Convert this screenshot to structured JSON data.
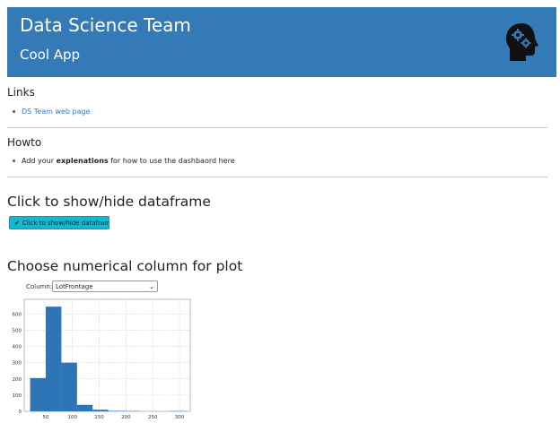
{
  "header": {
    "title": "Data Science Team",
    "subtitle": "Cool App",
    "logo_icon": "head-gears-icon"
  },
  "links_section": {
    "heading": "Links",
    "items": [
      {
        "text": "DS Team web page"
      }
    ]
  },
  "howto_section": {
    "heading": "Howto",
    "item_prefix": "Add your ",
    "item_bold": "explenations",
    "item_suffix": " for how to use the dashbaord here"
  },
  "toggle_section": {
    "heading": "Click to show/hide dataframe",
    "button_label": "Click to show/hide dataframe",
    "button_checked": true
  },
  "plot_section": {
    "heading": "Choose numerical column for plot",
    "column_label": "Column:",
    "column_value": "LotFrontage"
  },
  "chart_data": {
    "type": "bar",
    "title": "",
    "xlabel": "",
    "ylabel": "",
    "bar_color": "#2e75b6",
    "xlim": [
      10,
      320
    ],
    "ylim": [
      0,
      690
    ],
    "xticks": [
      50,
      100,
      150,
      200,
      250,
      300
    ],
    "yticks": [
      0,
      100,
      200,
      300,
      400,
      500,
      600
    ],
    "grid": true,
    "bins": [
      {
        "x0": 21.0,
        "x1": 50.2,
        "value": 205
      },
      {
        "x0": 50.2,
        "x1": 79.4,
        "value": 645
      },
      {
        "x0": 79.4,
        "x1": 108.6,
        "value": 300
      },
      {
        "x0": 108.6,
        "x1": 137.8,
        "value": 40
      },
      {
        "x0": 137.8,
        "x1": 167.0,
        "value": 10
      },
      {
        "x0": 167.0,
        "x1": 196.2,
        "value": 3
      },
      {
        "x0": 196.2,
        "x1": 225.4,
        "value": 2
      },
      {
        "x0": 225.4,
        "x1": 254.6,
        "value": 0
      },
      {
        "x0": 254.6,
        "x1": 283.8,
        "value": 0
      },
      {
        "x0": 283.8,
        "x1": 313.0,
        "value": 2
      }
    ]
  }
}
